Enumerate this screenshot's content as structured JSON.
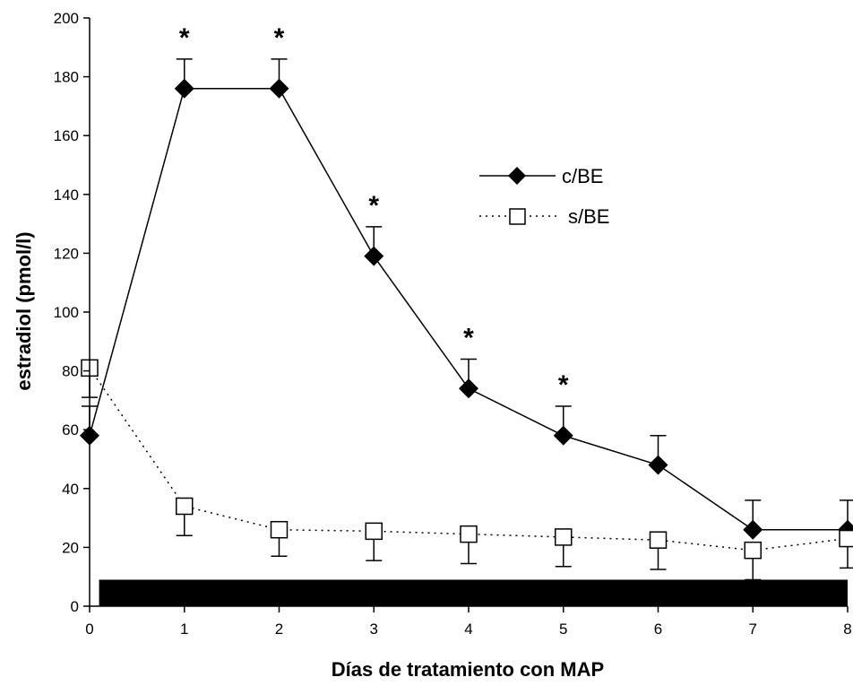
{
  "chart_data": {
    "type": "line",
    "xlabel": "Días de tratamiento con MAP",
    "ylabel": "estradiol (pmol/l)",
    "x": [
      0,
      1,
      2,
      3,
      4,
      5,
      6,
      7,
      8
    ],
    "xlim": [
      0,
      8
    ],
    "ylim": [
      0,
      200
    ],
    "yticks": [
      0,
      20,
      40,
      60,
      80,
      100,
      120,
      140,
      160,
      180,
      200
    ],
    "grid": false,
    "legend_position": "upper-center-right",
    "series": [
      {
        "name": "c/BE",
        "marker": "filled-diamond",
        "line_style": "solid",
        "color": "#000000",
        "values": [
          58,
          176,
          176,
          119,
          74,
          58,
          48,
          26,
          26
        ],
        "error_upper": [
          10,
          10,
          10,
          10,
          10,
          10,
          10,
          10,
          10
        ]
      },
      {
        "name": "s/BE",
        "marker": "open-square",
        "line_style": "dotted",
        "color": "#000000",
        "values": [
          81,
          34,
          26,
          25.5,
          24.5,
          23.5,
          22.5,
          19,
          23
        ],
        "error_lower": [
          10,
          10,
          9,
          10,
          10,
          10,
          10,
          10,
          10
        ]
      }
    ],
    "significance_marker": "*",
    "significant_x": [
      1,
      2,
      3,
      4,
      5
    ],
    "treatment_bar": {
      "x_start": 0.1,
      "x_end": 8,
      "y_start": 0,
      "y_end": 9
    }
  }
}
